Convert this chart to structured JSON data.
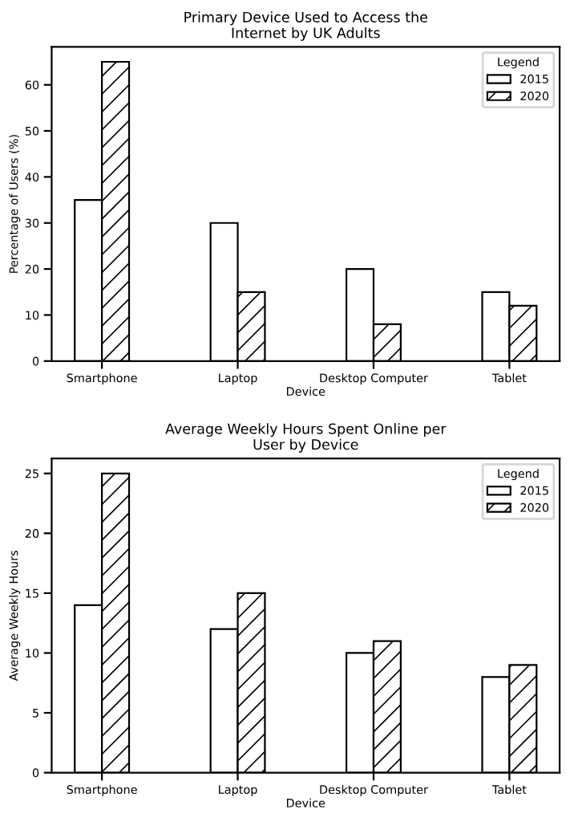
{
  "chart_data": [
    {
      "type": "bar",
      "title": "Primary Device Used to Access the\nInternet by UK Adults",
      "xlabel": "Device",
      "ylabel": "Percentage of Users (%)",
      "legend_title": "Legend",
      "legend": "top right",
      "categories": [
        "Smartphone",
        "Laptop",
        "Desktop Computer",
        "Tablet"
      ],
      "series": [
        {
          "name": "2015",
          "color": "#ffffff",
          "values": [
            35,
            30,
            20,
            15
          ]
        },
        {
          "name": "2020",
          "color": "#000000",
          "values": [
            65,
            15,
            8,
            12
          ]
        }
      ],
      "ylim": [
        0,
        68.25
      ],
      "yticks": [
        0,
        10,
        20,
        30,
        40,
        50,
        60
      ],
      "grid": false
    },
    {
      "type": "bar",
      "title": "Average Weekly Hours Spent Online per\nUser by Device",
      "xlabel": "Device",
      "ylabel": "Average Weekly Hours",
      "legend_title": "Legend",
      "legend": "top right",
      "categories": [
        "Smartphone",
        "Laptop",
        "Desktop Computer",
        "Tablet"
      ],
      "series": [
        {
          "name": "2015",
          "color": "#ffffff",
          "values": [
            14,
            12,
            10,
            8
          ]
        },
        {
          "name": "2020",
          "color": "#000000",
          "values": [
            25,
            15,
            11,
            9
          ]
        }
      ],
      "ylim": [
        0,
        26.25
      ],
      "yticks": [
        0,
        5,
        10,
        15,
        20,
        25
      ],
      "grid": false
    }
  ]
}
